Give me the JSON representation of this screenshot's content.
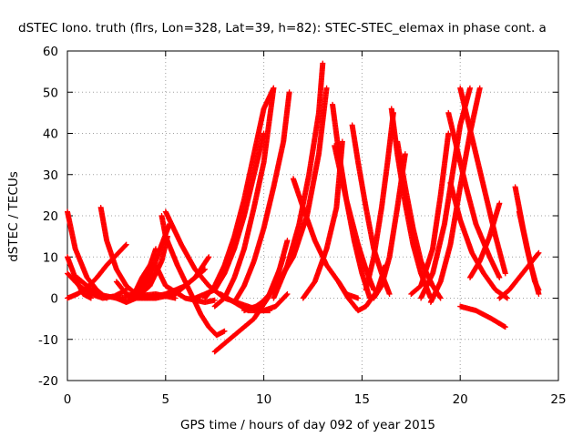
{
  "chart_data": {
    "type": "scatter",
    "title": "dSTEC Iono. truth (flrs, Lon=328, Lat=39, h=82): STEC-STEC_elemax in phase cont. a",
    "xlabel": "GPS time / hours of day 092 of year 2015",
    "ylabel": "dSTEC  / TECUs",
    "xlim": [
      0,
      25
    ],
    "ylim": [
      -20,
      60
    ],
    "x_ticks": [
      "0",
      "5",
      "10",
      "15",
      "20",
      "25"
    ],
    "y_ticks": [
      "-20",
      "-10",
      "0",
      "10",
      "20",
      "30",
      "40",
      "50",
      "60"
    ],
    "grid": true,
    "marker": "+",
    "color": "#ff0000",
    "series": [
      {
        "x": [
          0.0,
          0.4,
          1.0,
          1.5,
          2.0
        ],
        "y": [
          21,
          12,
          5,
          2,
          0
        ]
      },
      {
        "x": [
          0.0,
          0.4,
          0.8,
          1.2
        ],
        "y": [
          10,
          5,
          1,
          0
        ]
      },
      {
        "x": [
          0.0,
          0.5,
          1.0,
          1.5,
          2.0,
          2.5,
          3.0
        ],
        "y": [
          0,
          1,
          2.5,
          5,
          8,
          10.5,
          13
        ]
      },
      {
        "x": [
          0.0,
          0.6,
          1.2,
          1.8,
          2.4,
          3.0
        ],
        "y": [
          6,
          3,
          1,
          0,
          0.5,
          2
        ]
      },
      {
        "x": [
          0.5,
          1.5,
          2.5,
          3.5,
          4.5,
          5.5
        ],
        "y": [
          5,
          1,
          0,
          0.5,
          1,
          0
        ]
      },
      {
        "x": [
          1.7,
          2.0,
          2.5,
          3.0,
          3.5,
          4.5
        ],
        "y": [
          22,
          14,
          7,
          3,
          1,
          0
        ]
      },
      {
        "x": [
          2.5,
          3.0,
          3.3,
          3.6,
          4.0,
          4.5
        ],
        "y": [
          4,
          1,
          0,
          1,
          5,
          12
        ]
      },
      {
        "x": [
          2.5,
          3.0,
          3.5,
          4.2,
          4.8,
          5.1
        ],
        "y": [
          0,
          -1,
          0,
          3,
          9,
          15
        ]
      },
      {
        "x": [
          3.2,
          3.5,
          3.8,
          4.2
        ],
        "y": [
          0,
          2,
          5,
          8
        ]
      },
      {
        "x": [
          3.5,
          3.8,
          4.2,
          4.5,
          4.8,
          5.2
        ],
        "y": [
          0,
          2,
          5,
          9,
          13,
          18
        ]
      },
      {
        "x": [
          3.0,
          4.0,
          5.0,
          6.0,
          7.0
        ],
        "y": [
          1,
          0,
          1,
          3,
          7
        ]
      },
      {
        "x": [
          3.5,
          4.5,
          5.5,
          6.5,
          7.2
        ],
        "y": [
          0,
          0,
          1,
          5,
          10
        ]
      },
      {
        "x": [
          4.8,
          5.0,
          5.6,
          6.2,
          6.8,
          7.2,
          7.6,
          8.0
        ],
        "y": [
          20,
          15,
          8,
          2,
          -4,
          -7,
          -9,
          -8
        ]
      },
      {
        "x": [
          4.5,
          5.0,
          6.0,
          7.0,
          7.5
        ],
        "y": [
          8,
          3,
          0,
          -1,
          -0.5
        ]
      },
      {
        "x": [
          5.0,
          5.8,
          6.5,
          7.2,
          8.0,
          8.6,
          9.2,
          9.8,
          10.3
        ],
        "y": [
          21,
          13,
          7,
          3,
          0,
          -1,
          -2,
          -3,
          -3
        ]
      },
      {
        "x": [
          6.5,
          7.5,
          8.0,
          8.5,
          9.0,
          9.5,
          10.0
        ],
        "y": [
          0,
          2,
          6,
          12,
          20,
          30,
          40
        ]
      },
      {
        "x": [
          7.0,
          7.5,
          8.0,
          8.5,
          9.0,
          9.5,
          10.0,
          10.5
        ],
        "y": [
          0,
          3,
          8,
          15,
          24,
          35,
          46,
          51
        ]
      },
      {
        "x": [
          7.5,
          8.0,
          8.5,
          9.0,
          9.5,
          10.0,
          10.5
        ],
        "y": [
          -2,
          0,
          5,
          12,
          22,
          33,
          51
        ]
      },
      {
        "x": [
          7.5,
          8.5,
          9.5,
          10.2,
          10.8,
          11.2
        ],
        "y": [
          -13,
          -9,
          -5,
          0,
          7,
          14
        ]
      },
      {
        "x": [
          8.5,
          9.0,
          9.5,
          10.0,
          10.5,
          11.0,
          11.3
        ],
        "y": [
          -1,
          3,
          9,
          17,
          27,
          38,
          50
        ]
      },
      {
        "x": [
          9.0,
          9.6,
          10.2,
          10.6,
          11.0
        ],
        "y": [
          -3,
          -2,
          0,
          4,
          10
        ]
      },
      {
        "x": [
          7.8,
          8.5,
          9.2,
          10.0,
          10.6,
          11.2
        ],
        "y": [
          1,
          -1,
          -3,
          -3,
          -2,
          1
        ]
      },
      {
        "x": [
          10.5,
          11.2,
          11.8,
          12.3,
          12.8,
          13.0
        ],
        "y": [
          0,
          8,
          18,
          30,
          45,
          57
        ]
      },
      {
        "x": [
          9.5,
          10.5,
          11.5,
          12.2,
          12.8,
          13.2
        ],
        "y": [
          -3,
          2,
          10,
          20,
          35,
          51
        ]
      },
      {
        "x": [
          11.5,
          12.0,
          12.6,
          13.2,
          13.8,
          14.2,
          14.8
        ],
        "y": [
          29,
          22,
          14,
          8,
          4,
          1,
          0
        ]
      },
      {
        "x": [
          12.0,
          12.6,
          13.2,
          13.7,
          14.0
        ],
        "y": [
          0,
          4,
          12,
          22,
          38
        ]
      },
      {
        "x": [
          13.5,
          13.8,
          14.2,
          14.6,
          15.0,
          15.4
        ],
        "y": [
          47,
          36,
          24,
          14,
          6,
          0
        ]
      },
      {
        "x": [
          13.6,
          14.2,
          14.8,
          15.2,
          15.6
        ],
        "y": [
          37,
          24,
          13,
          7,
          2
        ]
      },
      {
        "x": [
          13.8,
          14.3,
          14.8,
          15.2,
          15.8,
          16.2
        ],
        "y": [
          4,
          0,
          -3,
          -2,
          2,
          8
        ]
      },
      {
        "x": [
          14.5,
          14.8,
          15.2,
          15.6,
          16.0,
          16.4
        ],
        "y": [
          42,
          33,
          22,
          12,
          6,
          1
        ]
      },
      {
        "x": [
          15.2,
          15.6,
          16.0,
          16.3,
          16.6
        ],
        "y": [
          2,
          10,
          22,
          33,
          45
        ]
      },
      {
        "x": [
          15.6,
          16.0,
          16.4,
          16.8,
          17.2
        ],
        "y": [
          0,
          3,
          10,
          22,
          35
        ]
      },
      {
        "x": [
          16.5,
          16.8,
          17.2,
          17.6,
          18.0,
          18.5
        ],
        "y": [
          46,
          35,
          23,
          13,
          6,
          0
        ]
      },
      {
        "x": [
          16.8,
          17.2,
          17.6,
          18.0,
          18.6,
          19.0
        ],
        "y": [
          38,
          27,
          17,
          9,
          3,
          0
        ]
      },
      {
        "x": [
          17.5,
          18.0,
          18.6,
          19.0,
          19.4
        ],
        "y": [
          1,
          3,
          12,
          25,
          40
        ]
      },
      {
        "x": [
          18.0,
          18.6,
          19.2,
          19.6,
          20.0,
          20.5
        ],
        "y": [
          0,
          6,
          18,
          30,
          42,
          51
        ]
      },
      {
        "x": [
          18.5,
          19.0,
          19.5,
          20.0,
          20.5,
          21.0
        ],
        "y": [
          -1,
          4,
          13,
          27,
          40,
          51
        ]
      },
      {
        "x": [
          19.4,
          19.8,
          20.3,
          20.8,
          21.5,
          22.0
        ],
        "y": [
          45,
          37,
          27,
          18,
          10,
          5
        ]
      },
      {
        "x": [
          19.5,
          20.0,
          20.6,
          21.2,
          21.8,
          22.4
        ],
        "y": [
          28,
          19,
          11,
          6,
          2,
          0
        ]
      },
      {
        "x": [
          20.0,
          20.6,
          21.2,
          21.8,
          22.3
        ],
        "y": [
          51,
          39,
          27,
          15,
          6
        ]
      },
      {
        "x": [
          20.5,
          21.0,
          21.5,
          22.0
        ],
        "y": [
          5,
          9,
          15,
          23
        ]
      },
      {
        "x": [
          20.0,
          20.8,
          21.6,
          22.3
        ],
        "y": [
          -2,
          -3,
          -5,
          -7
        ]
      },
      {
        "x": [
          22.0,
          22.5,
          23.0,
          23.5,
          24.0
        ],
        "y": [
          0,
          2,
          5,
          8,
          11
        ]
      },
      {
        "x": [
          22.8,
          23.2,
          23.6,
          24.0
        ],
        "y": [
          27,
          17,
          8,
          1
        ]
      },
      {
        "x": [
          23.0,
          23.4,
          23.8,
          24.0
        ],
        "y": [
          21,
          12,
          4,
          2
        ]
      }
    ]
  }
}
